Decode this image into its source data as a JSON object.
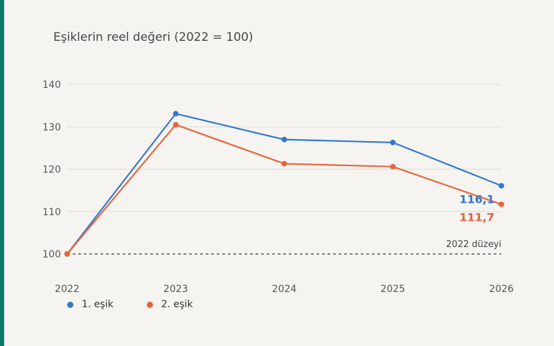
{
  "colors": {
    "accent_strip": "#0e7a66",
    "series1": "#2f79d1",
    "series2": "#e8643a",
    "grid": "#dddad4",
    "axis_text": "#555555"
  },
  "chart_data": {
    "type": "line",
    "title": "Eşiklerin reel değeri (2022 = 100)",
    "xlabel": "",
    "ylabel": "",
    "x": [
      "2022",
      "2023",
      "2024",
      "2025",
      "2026"
    ],
    "yticks": [
      100,
      110,
      120,
      130,
      140
    ],
    "ylim": [
      100,
      140
    ],
    "grid": true,
    "legend_position": "bottom-left",
    "series": [
      {
        "name": "1. eşik",
        "values": [
          100,
          133.1,
          127.0,
          126.3,
          116.1
        ],
        "end_label": "116,1"
      },
      {
        "name": "2. eşik",
        "values": [
          100,
          130.5,
          121.3,
          120.6,
          111.7
        ],
        "end_label": "111,7"
      }
    ],
    "reference_line": {
      "value": 100,
      "label": "2022 düzeyi",
      "style": "dashed"
    }
  }
}
